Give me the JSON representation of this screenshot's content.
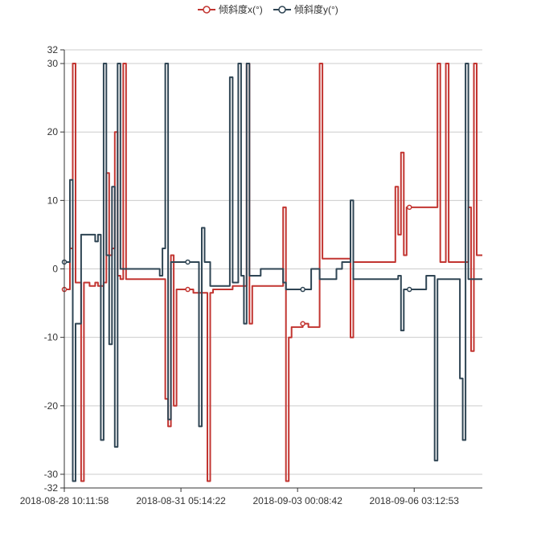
{
  "chart_data": {
    "type": "line",
    "title": "",
    "xlabel": "",
    "ylabel": "",
    "ylim": [
      -32,
      32
    ],
    "y_ticks": [
      32,
      30,
      20,
      10,
      0,
      -10,
      -20,
      -30,
      -32
    ],
    "y_tick_labels": [
      "32",
      "30",
      "20",
      "10",
      "0",
      "-10",
      "-20",
      "-30",
      "-32"
    ],
    "x_tick_labels": [
      "2018-08-28 10:11:58",
      "2018-08-31 05:14:22",
      "2018-09-03 00:08:42",
      "2018-09-06 03:12:53"
    ],
    "grid": true,
    "legend_position": "top",
    "series": [
      {
        "name": "倾斜度x(°)",
        "color": "#c23531",
        "points": [
          [
            0,
            -3
          ],
          [
            1,
            -3
          ],
          [
            2,
            3
          ],
          [
            3,
            30
          ],
          [
            4,
            -2
          ],
          [
            5,
            -2
          ],
          [
            6,
            -31
          ],
          [
            7,
            -2
          ],
          [
            8,
            -2
          ],
          [
            9,
            -2.5
          ],
          [
            10,
            -2.5
          ],
          [
            11,
            -2
          ],
          [
            12,
            -2.5
          ],
          [
            13,
            -2.5
          ],
          [
            14,
            -2
          ],
          [
            15,
            14
          ],
          [
            16,
            2
          ],
          [
            17,
            3
          ],
          [
            18,
            20
          ],
          [
            19,
            -1
          ],
          [
            20,
            -1.5
          ],
          [
            21,
            30
          ],
          [
            22,
            -1.5
          ],
          [
            23,
            -1.5
          ],
          [
            24,
            -1.5
          ],
          [
            25,
            -1.5
          ],
          [
            26,
            -1.5
          ],
          [
            27,
            -1.5
          ],
          [
            28,
            -1.5
          ],
          [
            29,
            -1.5
          ],
          [
            30,
            -1.5
          ],
          [
            31,
            -1.5
          ],
          [
            32,
            -1.5
          ],
          [
            33,
            -1.5
          ],
          [
            34,
            -1.5
          ],
          [
            35,
            -1.5
          ],
          [
            36,
            -19
          ],
          [
            37,
            -23
          ],
          [
            38,
            2
          ],
          [
            39,
            -20
          ],
          [
            40,
            -3
          ],
          [
            41,
            -3
          ],
          [
            42,
            -3
          ],
          [
            43,
            -3
          ],
          [
            44,
            -3
          ],
          [
            45,
            -3
          ],
          [
            46,
            -3.5
          ],
          [
            47,
            -3.5
          ],
          [
            48,
            -3.5
          ],
          [
            49,
            -3.5
          ],
          [
            50,
            -3.5
          ],
          [
            51,
            -31
          ],
          [
            52,
            -3.5
          ],
          [
            53,
            -3
          ],
          [
            54,
            -3
          ],
          [
            55,
            -3
          ],
          [
            56,
            -3
          ],
          [
            57,
            -3
          ],
          [
            58,
            -3
          ],
          [
            59,
            -3
          ],
          [
            60,
            -2.5
          ],
          [
            61,
            -2.5
          ],
          [
            62,
            -2.5
          ],
          [
            63,
            -2.5
          ],
          [
            64,
            -2.5
          ],
          [
            65,
            30
          ],
          [
            66,
            -8
          ],
          [
            67,
            -2.5
          ],
          [
            68,
            -2.5
          ],
          [
            69,
            -2.5
          ],
          [
            70,
            -2.5
          ],
          [
            71,
            -2.5
          ],
          [
            72,
            -2.5
          ],
          [
            73,
            -2.5
          ],
          [
            74,
            -2.5
          ],
          [
            75,
            -2.5
          ],
          [
            76,
            -2.5
          ],
          [
            77,
            -2.5
          ],
          [
            78,
            9
          ],
          [
            79,
            -31
          ],
          [
            80,
            -10
          ],
          [
            81,
            -8.5
          ],
          [
            82,
            -8.5
          ],
          [
            83,
            -8.5
          ],
          [
            84,
            -8.5
          ],
          [
            85,
            -8
          ],
          [
            86,
            -8
          ],
          [
            87,
            -8.5
          ],
          [
            88,
            -8.5
          ],
          [
            89,
            -8.5
          ],
          [
            90,
            -8.5
          ],
          [
            91,
            30
          ],
          [
            92,
            1.5
          ],
          [
            93,
            1.5
          ],
          [
            94,
            1.5
          ],
          [
            95,
            1.5
          ],
          [
            96,
            1.5
          ],
          [
            97,
            1.5
          ],
          [
            98,
            1.5
          ],
          [
            99,
            1.5
          ],
          [
            100,
            1.5
          ],
          [
            101,
            1.5
          ],
          [
            102,
            -10
          ],
          [
            103,
            1
          ],
          [
            104,
            1
          ],
          [
            105,
            1
          ],
          [
            106,
            1
          ],
          [
            107,
            1
          ],
          [
            108,
            1
          ],
          [
            109,
            1
          ],
          [
            110,
            1
          ],
          [
            111,
            1
          ],
          [
            112,
            1
          ],
          [
            113,
            1
          ],
          [
            114,
            1
          ],
          [
            115,
            1
          ],
          [
            116,
            1
          ],
          [
            117,
            1
          ],
          [
            118,
            12
          ],
          [
            119,
            5
          ],
          [
            120,
            17
          ],
          [
            121,
            2
          ],
          [
            122,
            9
          ],
          [
            123,
            9
          ],
          [
            124,
            9
          ],
          [
            125,
            9
          ],
          [
            126,
            9
          ],
          [
            127,
            9
          ],
          [
            128,
            9
          ],
          [
            129,
            9
          ],
          [
            130,
            9
          ],
          [
            131,
            9
          ],
          [
            132,
            9
          ],
          [
            133,
            30
          ],
          [
            134,
            1
          ],
          [
            135,
            1
          ],
          [
            136,
            30
          ],
          [
            137,
            1
          ],
          [
            138,
            1
          ],
          [
            139,
            1
          ],
          [
            140,
            1
          ],
          [
            141,
            1
          ],
          [
            142,
            1
          ],
          [
            143,
            1
          ],
          [
            144,
            9
          ],
          [
            145,
            -12
          ],
          [
            146,
            30
          ],
          [
            147,
            2
          ],
          [
            148,
            2
          ],
          [
            149,
            2
          ]
        ],
        "markers": [
          [
            0,
            -3
          ],
          [
            44,
            -3
          ],
          [
            85,
            -8
          ],
          [
            123,
            9
          ]
        ]
      },
      {
        "name": "倾斜度y(°)",
        "color": "#2f4554",
        "points": [
          [
            0,
            1
          ],
          [
            1,
            1
          ],
          [
            2,
            13
          ],
          [
            3,
            -31
          ],
          [
            4,
            -8
          ],
          [
            5,
            -8
          ],
          [
            6,
            5
          ],
          [
            7,
            5
          ],
          [
            8,
            5
          ],
          [
            9,
            5
          ],
          [
            10,
            5
          ],
          [
            11,
            4
          ],
          [
            12,
            5
          ],
          [
            13,
            -25
          ],
          [
            14,
            30
          ],
          [
            15,
            2
          ],
          [
            16,
            -11
          ],
          [
            17,
            12
          ],
          [
            18,
            -26
          ],
          [
            19,
            30
          ],
          [
            20,
            0
          ],
          [
            21,
            0
          ],
          [
            22,
            0
          ],
          [
            23,
            0
          ],
          [
            24,
            0
          ],
          [
            25,
            0
          ],
          [
            26,
            0
          ],
          [
            27,
            0
          ],
          [
            28,
            0
          ],
          [
            29,
            0
          ],
          [
            30,
            0
          ],
          [
            31,
            0
          ],
          [
            32,
            0
          ],
          [
            33,
            0
          ],
          [
            34,
            -1
          ],
          [
            35,
            3
          ],
          [
            36,
            30
          ],
          [
            37,
            -22
          ],
          [
            38,
            1
          ],
          [
            39,
            1
          ],
          [
            40,
            1
          ],
          [
            41,
            1
          ],
          [
            42,
            1
          ],
          [
            43,
            1
          ],
          [
            44,
            1
          ],
          [
            45,
            1
          ],
          [
            46,
            1
          ],
          [
            47,
            1
          ],
          [
            48,
            -23
          ],
          [
            49,
            6
          ],
          [
            50,
            1
          ],
          [
            51,
            1
          ],
          [
            52,
            -2.5
          ],
          [
            53,
            -2.5
          ],
          [
            54,
            -2.5
          ],
          [
            55,
            -2.5
          ],
          [
            56,
            -2.5
          ],
          [
            57,
            -2.5
          ],
          [
            58,
            -2.5
          ],
          [
            59,
            28
          ],
          [
            60,
            -2
          ],
          [
            61,
            -2
          ],
          [
            62,
            30
          ],
          [
            63,
            -1
          ],
          [
            64,
            -8
          ],
          [
            65,
            30
          ],
          [
            66,
            -1
          ],
          [
            67,
            -1
          ],
          [
            68,
            -1
          ],
          [
            69,
            -1
          ],
          [
            70,
            0
          ],
          [
            71,
            0
          ],
          [
            72,
            0
          ],
          [
            73,
            0
          ],
          [
            74,
            0
          ],
          [
            75,
            0
          ],
          [
            76,
            0
          ],
          [
            77,
            0
          ],
          [
            78,
            -2
          ],
          [
            79,
            -3
          ],
          [
            80,
            -3
          ],
          [
            81,
            -3
          ],
          [
            82,
            -3
          ],
          [
            83,
            -3
          ],
          [
            84,
            -3
          ],
          [
            85,
            -3
          ],
          [
            86,
            -3
          ],
          [
            87,
            -3
          ],
          [
            88,
            0
          ],
          [
            89,
            0
          ],
          [
            90,
            0
          ],
          [
            91,
            -1.5
          ],
          [
            92,
            -1.5
          ],
          [
            93,
            -1.5
          ],
          [
            94,
            -1.5
          ],
          [
            95,
            -1.5
          ],
          [
            96,
            -1.5
          ],
          [
            97,
            0
          ],
          [
            98,
            0
          ],
          [
            99,
            1
          ],
          [
            100,
            1
          ],
          [
            101,
            1
          ],
          [
            102,
            10
          ],
          [
            103,
            -1.5
          ],
          [
            104,
            -1.5
          ],
          [
            105,
            -1.5
          ],
          [
            106,
            -1.5
          ],
          [
            107,
            -1.5
          ],
          [
            108,
            -1.5
          ],
          [
            109,
            -1.5
          ],
          [
            110,
            -1.5
          ],
          [
            111,
            -1.5
          ],
          [
            112,
            -1.5
          ],
          [
            113,
            -1.5
          ],
          [
            114,
            -1.5
          ],
          [
            115,
            -1.5
          ],
          [
            116,
            -1.5
          ],
          [
            117,
            -1.5
          ],
          [
            118,
            -1.5
          ],
          [
            119,
            -1
          ],
          [
            120,
            -9
          ],
          [
            121,
            -3
          ],
          [
            122,
            -3
          ],
          [
            123,
            -3
          ],
          [
            124,
            -3
          ],
          [
            125,
            -3
          ],
          [
            126,
            -3
          ],
          [
            127,
            -3
          ],
          [
            128,
            -3
          ],
          [
            129,
            -1
          ],
          [
            130,
            -1
          ],
          [
            131,
            -1
          ],
          [
            132,
            -28
          ],
          [
            133,
            -1.5
          ],
          [
            134,
            -1.5
          ],
          [
            135,
            -1.5
          ],
          [
            136,
            -1.5
          ],
          [
            137,
            -1.5
          ],
          [
            138,
            -1.5
          ],
          [
            139,
            -1.5
          ],
          [
            140,
            -1.5
          ],
          [
            141,
            -16
          ],
          [
            142,
            -25
          ],
          [
            143,
            30
          ],
          [
            144,
            -1.5
          ],
          [
            145,
            -1.5
          ],
          [
            146,
            -1.5
          ],
          [
            147,
            -1.5
          ],
          [
            148,
            -1.5
          ],
          [
            149,
            -1.5
          ]
        ],
        "markers": [
          [
            0,
            1
          ],
          [
            44,
            1
          ],
          [
            85,
            -3
          ],
          [
            123,
            -3
          ]
        ]
      }
    ]
  }
}
